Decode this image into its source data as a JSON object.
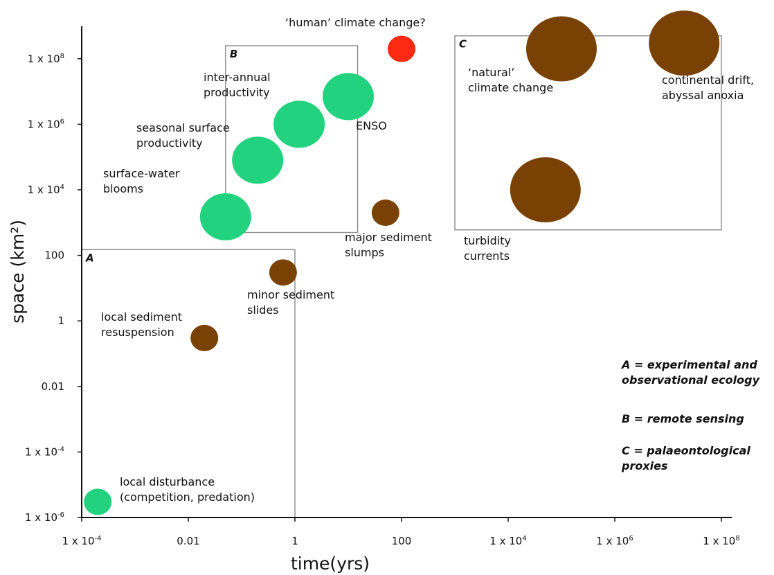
{
  "chart_data": {
    "type": "scatter",
    "title": "",
    "xlabel": "time(yrs)",
    "ylabel": "space (km²)",
    "x_scale": "log",
    "y_scale": "log",
    "xlim": [
      0.0001,
      100000000
    ],
    "ylim": [
      1e-06,
      300000000
    ],
    "x_ticks": [
      {
        "value": 0.0001,
        "base": "1 x 10",
        "exp": "-4"
      },
      {
        "value": 0.01,
        "label": "0.01"
      },
      {
        "value": 1,
        "label": "1"
      },
      {
        "value": 100,
        "label": "100"
      },
      {
        "value": 10000,
        "base": "1 x 10",
        "exp": "4"
      },
      {
        "value": 1000000,
        "base": "1 x 10",
        "exp": "6"
      },
      {
        "value": 100000000,
        "base": "1 x 10",
        "exp": "8"
      }
    ],
    "y_ticks": [
      {
        "value": 1e-06,
        "base": "1 x 10",
        "exp": "-6"
      },
      {
        "value": 0.0001,
        "base": "1 x 10",
        "exp": "-4"
      },
      {
        "value": 0.01,
        "label": "0.01"
      },
      {
        "value": 1,
        "label": "1"
      },
      {
        "value": 100,
        "label": "100"
      },
      {
        "value": 10000,
        "base": "1 x 10",
        "exp": "4"
      },
      {
        "value": 1000000,
        "base": "1 x 10",
        "exp": "6"
      },
      {
        "value": 100000000,
        "base": "1 x 10",
        "exp": "8"
      }
    ],
    "colors": {
      "green": "#22d27f",
      "brown": "#7a4105",
      "red": "#ff2a12"
    },
    "points": [
      {
        "id": "local-disturbance",
        "x": 0.0002,
        "y": 3e-06,
        "size": 1,
        "color": "green",
        "label": [
          "local disturbance",
          "(competition, predation)"
        ]
      },
      {
        "id": "local-sediment-resuspension",
        "x": 0.02,
        "y": 0.3,
        "size": 1,
        "color": "brown",
        "label": [
          "local sediment",
          "resuspension"
        ]
      },
      {
        "id": "minor-sediment-slides",
        "x": 0.6,
        "y": 30,
        "size": 1,
        "color": "brown",
        "label": [
          "minor sediment",
          "slides"
        ]
      },
      {
        "id": "surface-water-blooms",
        "x": 0.05,
        "y": 1500,
        "size": 2,
        "color": "green",
        "label": [
          "surface-water",
          "blooms"
        ]
      },
      {
        "id": "seasonal-surface-productivity",
        "x": 0.2,
        "y": 80000,
        "size": 2,
        "color": "green",
        "label": [
          "seasonal surface",
          "productivity"
        ]
      },
      {
        "id": "inter-annual-productivity",
        "x": 1.2,
        "y": 1000000,
        "size": 2,
        "color": "green",
        "label": [
          "inter-annual",
          "productivity"
        ]
      },
      {
        "id": "enso",
        "x": 10,
        "y": 7000000,
        "size": 2,
        "color": "green",
        "label": [
          "ENSO"
        ]
      },
      {
        "id": "major-sediment-slumps",
        "x": 50,
        "y": 2000,
        "size": 1,
        "color": "brown",
        "label": [
          "major sediment",
          "slumps"
        ]
      },
      {
        "id": "human-climate-change",
        "x": 100,
        "y": 200000000,
        "size": 1,
        "color": "red",
        "label": [
          "‘human’ climate change?"
        ]
      },
      {
        "id": "turbidity-currents",
        "x": 50000,
        "y": 10000,
        "size": 3,
        "color": "brown",
        "label": [
          "turbidity",
          "currents"
        ]
      },
      {
        "id": "natural-climate-change",
        "x": 100000,
        "y": 200000000,
        "size": 3,
        "color": "brown",
        "label": [
          "‘natural’",
          "climate change"
        ]
      },
      {
        "id": "continental-drift",
        "x": 20000000,
        "y": 300000000,
        "size": 3,
        "color": "brown",
        "label": [
          "continental drift,",
          "abyssal anoxia"
        ]
      }
    ],
    "regions": [
      {
        "id": "A",
        "label": "A",
        "x_range": [
          0.0001,
          1
        ],
        "y_range": [
          1e-06,
          150
        ]
      },
      {
        "id": "B",
        "label": "B",
        "x_range": [
          0.05,
          15
        ],
        "y_range": [
          500,
          250000000
        ]
      },
      {
        "id": "C",
        "label": "C",
        "x_range": [
          1000,
          100000000
        ],
        "y_range": [
          600,
          500000000
        ]
      }
    ],
    "legend": [
      {
        "id": "key-a",
        "lines": [
          "A = experimental and",
          "observational ecology"
        ]
      },
      {
        "id": "key-b",
        "lines": [
          "B = remote sensing"
        ]
      },
      {
        "id": "key-c",
        "lines": [
          "C = palaeontological",
          "proxies"
        ]
      }
    ]
  }
}
